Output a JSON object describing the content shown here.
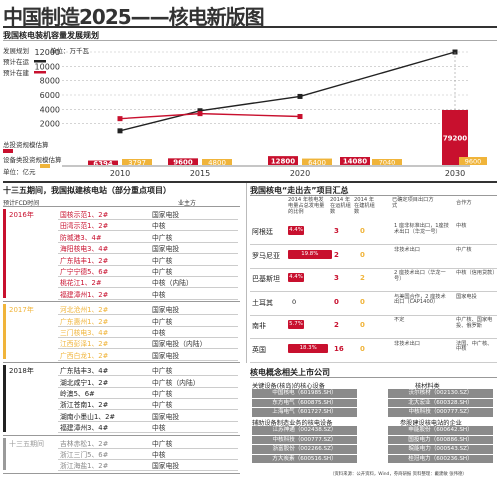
{
  "title": "中国制造2025——核电新版图",
  "chart_section": "我国核电装机容量发展规划",
  "chart_data": [
    {
      "type": "line",
      "title": "发展规划",
      "unit_label": "单位：万千瓦",
      "x": [
        "2010",
        "2015",
        "2020",
        "2030"
      ],
      "series": [
        {
          "name": "预计在运",
          "values": [
            1000,
            3800,
            5800,
            12000
          ]
        },
        {
          "name": "预计在建",
          "values": [
            2700,
            3400,
            3000,
            null
          ]
        }
      ],
      "yticks": [
        "12000",
        "10000",
        "8000",
        "6000",
        "4000",
        "2000"
      ],
      "ylim": [
        0,
        12000
      ]
    },
    {
      "type": "bar",
      "title": "投资规模估算",
      "unit_label": "单位：亿元",
      "categories": [
        "2010",
        "2015",
        "2020",
        "2030"
      ],
      "series": [
        {
          "name": "总投资规模估算",
          "values": [
            6394,
            9600,
            12800,
            79200
          ],
          "labels": [
            "6394",
            "9600",
            "12800",
            "79200"
          ]
        },
        {
          "name": "设备类投资规模估算",
          "values": [
            3797,
            4800,
            6400,
            9600
          ],
          "labels": [
            "3797",
            "4800",
            "6400",
            "9600"
          ]
        }
      ],
      "extra_value": {
        "label": "14080",
        "color": "#c8102e"
      },
      "extra_value2": {
        "label": "7040",
        "color": "#f0b43a"
      }
    }
  ],
  "colors": {
    "red": "#c8102e",
    "orange": "#f0b43a",
    "dark": "#222222",
    "gray": "#9a9a9a"
  },
  "left_section": {
    "title": "十三五期间，我国拟建核电站（部分重点项目）",
    "header_fcd": "预计FCD时间",
    "header_owner": "业主方",
    "groups": [
      {
        "label": "2016年",
        "color": "#c8102e",
        "items": [
          {
            "name": "国核示范1、2#",
            "owner": "国家电投"
          },
          {
            "name": "田湾示范1、2#",
            "owner": "中核"
          },
          {
            "name": "防城港3、4#",
            "owner": "中广核"
          },
          {
            "name": "海阳核电3、4#",
            "owner": "国家电投"
          },
          {
            "name": "广东陆丰1、2#",
            "owner": "中广核"
          },
          {
            "name": "广宁宁德5、6#",
            "owner": "中广核"
          },
          {
            "name": "桃花江1、2#",
            "owner": "中核（内陆）"
          },
          {
            "name": "福建漳州1、2#",
            "owner": "中核"
          }
        ]
      },
      {
        "label": "2017年",
        "color": "#f0b43a",
        "items": [
          {
            "name": "河北沧州1、2#",
            "owner": "国家电投"
          },
          {
            "name": "广东惠州1、2#",
            "owner": "中广核"
          },
          {
            "name": "三门核电3、4#",
            "owner": "中核"
          },
          {
            "name": "江西彭泽1、2#",
            "owner": "国家电投（内陆）"
          },
          {
            "name": "广西白龙1、2#",
            "owner": "国家电投"
          }
        ]
      },
      {
        "label": "2018年",
        "color": "#222222",
        "items": [
          {
            "name": "广东陆丰3、4#",
            "owner": "中广核"
          },
          {
            "name": "湖北咸宁1、2#",
            "owner": "中广核（内陆）"
          },
          {
            "name": "岭澳5、6#",
            "owner": "中广核"
          },
          {
            "name": "浙江苍南1、2#",
            "owner": "中广核"
          },
          {
            "name": "湖南小墨山1、2#",
            "owner": "国家电投"
          },
          {
            "name": "福建漳州3、4#",
            "owner": "中核"
          }
        ]
      },
      {
        "label": "十三五期间",
        "color": "#9a9a9a",
        "items": [
          {
            "name": "吉林赤松1、2#",
            "owner": "中广核"
          },
          {
            "name": "浙江三门5、6#",
            "owner": "中核"
          },
          {
            "name": "浙江海盐1、2#",
            "owner": "国家电投"
          }
        ]
      }
    ]
  },
  "abroad": {
    "title": "我国核电“走出去”项目汇总",
    "headers": [
      "",
      "2014 年核电发电量占总发电量的比例",
      "2014 年在运机组数",
      "2014 年在建机组数",
      "已确定项目出口方式",
      "合作方"
    ],
    "rows": [
      {
        "country": "阿根廷",
        "pct": "4.4%",
        "pct_val": 4.4,
        "op": "3",
        "con": "0",
        "mode": "1 座非标准出口，1座技术出口（华龙一号）",
        "partner": "中核"
      },
      {
        "country": "罗马尼亚",
        "pct": "19.8%",
        "pct_val": 19.8,
        "op": "2",
        "con": "0",
        "mode": "非技术出口",
        "partner": "中广核"
      },
      {
        "country": "巴基斯坦",
        "pct": "4.4%",
        "pct_val": 4.4,
        "op": "3",
        "con": "2",
        "mode": "2 座技术出口（华龙一号）",
        "partner": "中核（信用贷款）"
      },
      {
        "country": "土耳其",
        "pct": "0",
        "pct_val": 0,
        "op": "0",
        "con": "0",
        "mode": "与美国合作，2 座技术出口（CAP1400）",
        "partner": "国家电投"
      },
      {
        "country": "南非",
        "pct": "5.7%",
        "pct_val": 5.7,
        "op": "2",
        "con": "0",
        "mode": "不定",
        "partner": "中广核、国家电投、俄罗斯"
      },
      {
        "country": "英国",
        "pct": "18.3%",
        "pct_val": 18.3,
        "op": "16",
        "con": "0",
        "mode": "非技术出口",
        "partner": "法国、中广核、中核"
      }
    ]
  },
  "stocks": {
    "title": "核电概念相关上市公司",
    "col1_title": "关键设备(核岛)的核心设备",
    "col2_title": "核材料类",
    "col1": [
      "中国核电（601985.SH）",
      "东方电气（600875.SH）",
      "上海电气（601727.SH）"
    ],
    "col2": [
      "沃尔核材（002130.SZ）",
      "北大宏业（600328.SH）",
      "中核科技（000777.SZ）"
    ],
    "col3_title": "辅助设备制造业务的核电设备",
    "col4_title": "参股建设核电站的企业",
    "col3": [
      "江苏神通（002438.SZ）",
      "中核科技（000777.SZ）",
      "浙富股份（002266.SZ）",
      "方大炭素（600516.SH）"
    ],
    "col4": [
      "申能股份（600642.SH）",
      "国投电力（600886.SH）",
      "皖能电力（000543.SZ）",
      "桂冠电力（600236.SH）"
    ],
    "source": "（资料来源：公开资料，Wind，券商研报  资料整理：戴建敏  张伟德）"
  }
}
